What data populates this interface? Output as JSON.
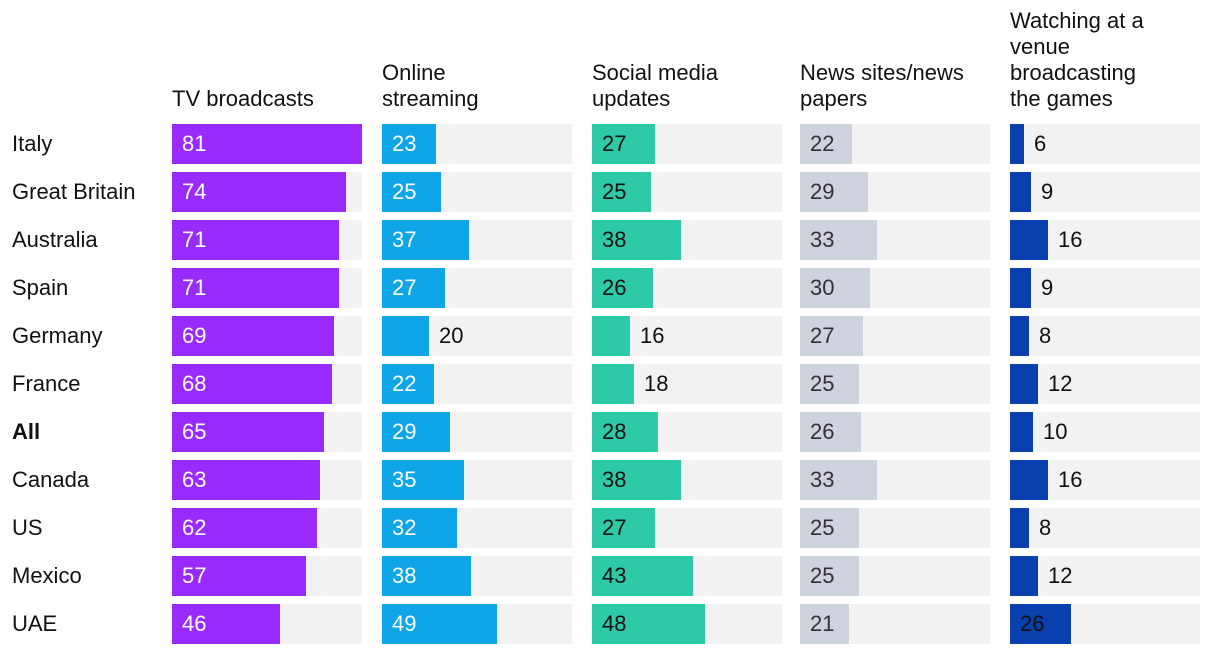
{
  "chart_data": {
    "type": "bar",
    "orientation": "horizontal",
    "layout": "small-multiples",
    "scale_max": 81,
    "categories": [
      "Italy",
      "Great Britain",
      "Australia",
      "Spain",
      "Germany",
      "France",
      "All",
      "Canada",
      "US",
      "Mexico",
      "UAE"
    ],
    "highlight_category": "All",
    "series": [
      {
        "name": "TV broadcasts",
        "color": "#9a2bff",
        "values": [
          81,
          74,
          71,
          71,
          69,
          68,
          65,
          63,
          62,
          57,
          46
        ]
      },
      {
        "name": "Online\nstreaming",
        "color": "#0ea5e9",
        "values": [
          23,
          25,
          37,
          27,
          20,
          22,
          29,
          35,
          32,
          38,
          49
        ]
      },
      {
        "name": "Social media\nupdates",
        "color": "#2ec9a7",
        "values": [
          27,
          25,
          38,
          26,
          16,
          18,
          28,
          38,
          27,
          43,
          48
        ]
      },
      {
        "name": "News sites/news\npapers",
        "color": "#cfd3dd",
        "values": [
          22,
          29,
          33,
          30,
          27,
          25,
          26,
          33,
          25,
          25,
          21
        ]
      },
      {
        "name": "Watching at a\nvenue\nbroadcasting\nthe games",
        "color": "#0a3fae",
        "values": [
          6,
          9,
          16,
          9,
          8,
          12,
          10,
          16,
          8,
          12,
          26
        ]
      }
    ]
  }
}
